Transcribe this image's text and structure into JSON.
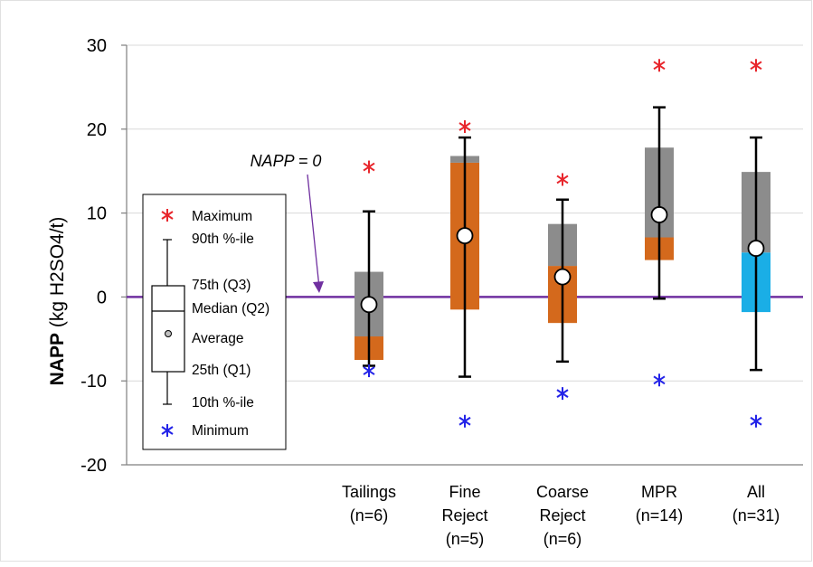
{
  "chart_data": {
    "type": "box",
    "ylabel_bold": "NAPP",
    "ylabel_rest": " (kg H2SO4/t)",
    "ylim": [
      -20,
      30
    ],
    "yticks": [
      -20,
      -10,
      0,
      10,
      20,
      30
    ],
    "grid": true,
    "reference_line": {
      "value": 0,
      "label": "NAPP = 0",
      "color": "#7030a0"
    },
    "categories": [
      {
        "lines": [
          "Tailings",
          "(n=6)"
        ],
        "min": -8.8,
        "p10": -8.2,
        "q1": -7.5,
        "median": -4.7,
        "q3": 3.0,
        "p90": 10.2,
        "max": 15.5,
        "mean": -0.9,
        "lower_color": "#d4691c",
        "upper_color": "#8c8c8c"
      },
      {
        "lines": [
          "Fine",
          "Reject",
          "(n=5)"
        ],
        "min": -14.8,
        "p10": -9.5,
        "q1": -1.5,
        "median": 16.0,
        "q3": 16.8,
        "p90": 19.0,
        "max": 20.3,
        "mean": 7.3,
        "lower_color": "#d4691c",
        "upper_color": "#8c8c8c"
      },
      {
        "lines": [
          "Coarse",
          "Reject",
          "(n=6)"
        ],
        "min": -11.5,
        "p10": -7.7,
        "q1": -3.1,
        "median": 3.7,
        "q3": 8.7,
        "p90": 11.6,
        "max": 14.0,
        "mean": 2.4,
        "lower_color": "#d4691c",
        "upper_color": "#8c8c8c"
      },
      {
        "lines": [
          "MPR",
          "(n=14)"
        ],
        "min": -9.9,
        "p10": -0.2,
        "q1": 4.4,
        "median": 7.1,
        "q3": 17.8,
        "p90": 22.6,
        "max": 27.6,
        "mean": 9.8,
        "lower_color": "#d4691c",
        "upper_color": "#8c8c8c"
      },
      {
        "lines": [
          "All",
          "(n=31)"
        ],
        "min": -14.8,
        "p10": -8.7,
        "q1": -1.8,
        "median": 5.3,
        "q3": 14.9,
        "p90": 19.0,
        "max": 27.6,
        "mean": 5.8,
        "lower_color": "#1aaee6",
        "upper_color": "#8c8c8c"
      }
    ],
    "legend": {
      "max_label": "Maximum",
      "p90_label": "90th %-ile",
      "q3_label": "75th (Q3)",
      "median_label": "Median (Q2)",
      "mean_label": "Average",
      "q1_label": "25th (Q1)",
      "p10_label": "10th %-ile",
      "min_label": "Minimum"
    },
    "colors": {
      "max_marker": "#e8262c",
      "min_marker": "#2323e8",
      "whisker": "#000000",
      "grid": "#d9d9d9"
    }
  }
}
